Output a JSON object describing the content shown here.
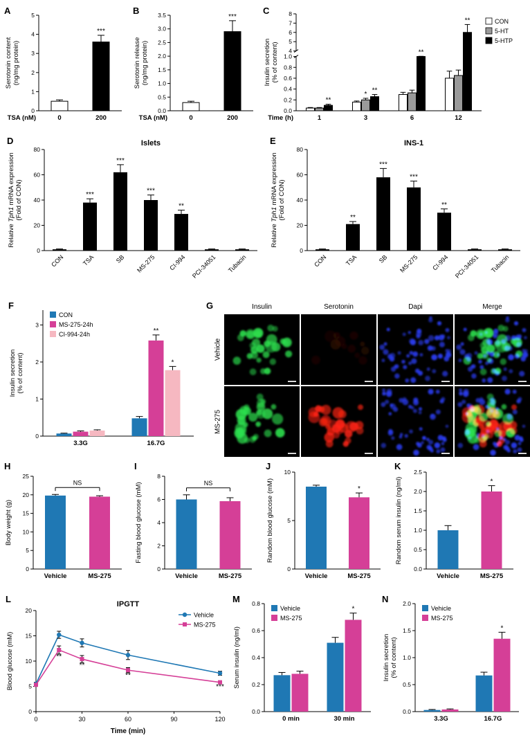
{
  "chart_data": [
    {
      "panel": "A",
      "type": "bar",
      "ylabel": [
        "Serotonin content",
        "(ng/mg protein)"
      ],
      "ylim": [
        0,
        5
      ],
      "yticks": [
        0,
        1,
        2,
        3,
        4,
        5
      ],
      "ydec": 0,
      "xprefix": "TSA (nM)",
      "categories": [
        "0",
        "200"
      ],
      "series": [
        {
          "colors": [
            "#ffffff",
            "#000000"
          ],
          "stroke": "#000000",
          "values": [
            0.5,
            3.6
          ],
          "errors": [
            0.07,
            0.35
          ],
          "sig": [
            null,
            "***"
          ]
        }
      ]
    },
    {
      "panel": "B",
      "type": "bar",
      "ylabel": [
        "Serotonin release",
        "(ng/mg protein)"
      ],
      "ylim": [
        0,
        3.5
      ],
      "yticks": [
        0,
        0.5,
        1,
        1.5,
        2,
        2.5,
        3,
        3.5
      ],
      "ydec": 1,
      "xprefix": "TSA (nM)",
      "categories": [
        "0",
        "200"
      ],
      "series": [
        {
          "colors": [
            "#ffffff",
            "#000000"
          ],
          "stroke": "#000000",
          "values": [
            0.3,
            2.9
          ],
          "errors": [
            0.05,
            0.4
          ],
          "sig": [
            null,
            "***"
          ]
        }
      ]
    },
    {
      "panel": "C",
      "type": "bar",
      "ylabel": [
        "Insulin secretion",
        "(% of content)"
      ],
      "ybreak": {
        "lower": [
          0,
          1.0
        ],
        "upper": [
          4,
          8
        ],
        "lticks": [
          0,
          0.2,
          0.4,
          0.6,
          0.8,
          1.0
        ],
        "uticks": [
          4,
          5,
          6,
          7,
          8
        ],
        "ldec": 1,
        "udec": 0
      },
      "xprefix": "Time (h)",
      "categories": [
        "1",
        "3",
        "6",
        "12"
      ],
      "series": [
        {
          "name": "CON",
          "color": "#ffffff",
          "stroke": "#000000",
          "values": [
            0.05,
            0.16,
            0.3,
            0.6
          ],
          "errors": [
            0.01,
            0.02,
            0.04,
            0.13
          ],
          "sig": [
            null,
            null,
            null,
            null
          ]
        },
        {
          "name": "5-HT",
          "color": "#9a9a9a",
          "stroke": "#000000",
          "values": [
            0.05,
            0.2,
            0.33,
            0.65
          ],
          "errors": [
            0.01,
            0.03,
            0.05,
            0.1
          ],
          "sig": [
            null,
            "*",
            null,
            null
          ]
        },
        {
          "name": "5-HTP",
          "color": "#000000",
          "stroke": "#000000",
          "values": [
            0.1,
            0.26,
            1.0,
            6.0
          ],
          "errors": [
            0.02,
            0.04,
            0.12,
            0.85
          ],
          "sig": [
            "**",
            "**",
            "**",
            "**"
          ]
        }
      ],
      "legend": {
        "pos": "right",
        "items": [
          {
            "label": "CON",
            "color": "#ffffff",
            "stroke": "#000000"
          },
          {
            "label": "5-HT",
            "color": "#9a9a9a",
            "stroke": "#000000"
          },
          {
            "label": "5-HTP",
            "color": "#000000",
            "stroke": "#000000"
          }
        ]
      }
    },
    {
      "panel": "D",
      "type": "bar",
      "title": "Islets",
      "ylabel": [
        "Relative *Tph1* mRNA expression",
        "(Fold of CON)"
      ],
      "ylim": [
        0,
        80
      ],
      "yticks": [
        0,
        20,
        40,
        60,
        80
      ],
      "ydec": 0,
      "xrotate": 45,
      "categories": [
        "CON",
        "TSA",
        "SB",
        "MS-275",
        "CI-994",
        "PCI-34051",
        "Tubacin"
      ],
      "series": [
        {
          "color": "#000000",
          "values": [
            1,
            38,
            62,
            40,
            29,
            1,
            1
          ],
          "errors": [
            0.3,
            3,
            6,
            4,
            3,
            0.3,
            0.3
          ],
          "sig": [
            null,
            "***",
            "***",
            "***",
            "**",
            null,
            null
          ]
        }
      ]
    },
    {
      "panel": "E",
      "type": "bar",
      "title": "INS-1",
      "ylabel": [
        "Relative *Tph1* mRNA expression",
        "(Fold of CON)"
      ],
      "ylim": [
        0,
        80
      ],
      "yticks": [
        0,
        20,
        40,
        60,
        80
      ],
      "ydec": 0,
      "xrotate": 45,
      "categories": [
        "CON",
        "TSA",
        "SB",
        "MS-275",
        "CI-994",
        "PCI-34051",
        "Tubacin"
      ],
      "series": [
        {
          "color": "#000000",
          "values": [
            1,
            21,
            58,
            50,
            30,
            1,
            1
          ],
          "errors": [
            0.3,
            2,
            7,
            5,
            3,
            0.3,
            0.3
          ],
          "sig": [
            null,
            "**",
            "***",
            "***",
            "**",
            null,
            null
          ]
        }
      ]
    },
    {
      "panel": "F",
      "type": "bar",
      "ylabel": [
        "Insulin secretion",
        "(% of content)"
      ],
      "ylim": [
        0,
        3.4
      ],
      "yticks": [
        0,
        1,
        2,
        3
      ],
      "ydec": 0,
      "categories": [
        "3.3G",
        "16.7G"
      ],
      "series": [
        {
          "name": "CON",
          "color": "#1f78b4",
          "values": [
            0.07,
            0.48
          ],
          "errors": [
            0.01,
            0.05
          ],
          "sig": [
            null,
            null
          ]
        },
        {
          "name": "MS-275-24h",
          "color": "#d53f97",
          "values": [
            0.12,
            2.58
          ],
          "errors": [
            0.02,
            0.15
          ],
          "sig": [
            null,
            "**"
          ]
        },
        {
          "name": "CI-994-24h",
          "color": "#f6b8c1",
          "values": [
            0.15,
            1.78
          ],
          "errors": [
            0.02,
            0.1
          ],
          "sig": [
            null,
            "*"
          ]
        }
      ],
      "legend": {
        "pos": "tl",
        "items": [
          {
            "label": "CON",
            "color": "#1f78b4"
          },
          {
            "label": "MS-275-24h",
            "color": "#d53f97"
          },
          {
            "label": "CI-994-24h",
            "color": "#f6b8c1"
          }
        ]
      }
    },
    {
      "panel": "H",
      "type": "bar",
      "ylabel": [
        "Body weight (g)"
      ],
      "ylim": [
        0,
        25
      ],
      "yticks": [
        0,
        5,
        10,
        15,
        20,
        25
      ],
      "ydec": 0,
      "categories": [
        "Vehicle",
        "MS-275"
      ],
      "bracket": {
        "label": "NS"
      },
      "series": [
        {
          "colors": [
            "#1f78b4",
            "#d53f97"
          ],
          "values": [
            19.8,
            19.5
          ],
          "errors": [
            0.3,
            0.25
          ]
        }
      ]
    },
    {
      "panel": "I",
      "type": "bar",
      "ylabel": [
        "Fasting blood glucose (mM)"
      ],
      "ylim": [
        0,
        8
      ],
      "yticks": [
        0,
        2,
        4,
        6,
        8
      ],
      "ydec": 0,
      "categories": [
        "Vehicle",
        "MS-275"
      ],
      "bracket": {
        "label": "NS"
      },
      "series": [
        {
          "colors": [
            "#1f78b4",
            "#d53f97"
          ],
          "values": [
            6.0,
            5.85
          ],
          "errors": [
            0.4,
            0.3
          ]
        }
      ]
    },
    {
      "panel": "J",
      "type": "bar",
      "ylabel": [
        "Random blood glucose (mM)"
      ],
      "ylim": [
        0,
        10
      ],
      "yticks": [
        0,
        5,
        10
      ],
      "ydec": 0,
      "categories": [
        "Vehicle",
        "MS-275"
      ],
      "series": [
        {
          "colors": [
            "#1f78b4",
            "#d53f97"
          ],
          "values": [
            8.5,
            7.4
          ],
          "errors": [
            0.15,
            0.45
          ],
          "sig": [
            null,
            "*"
          ]
        }
      ]
    },
    {
      "panel": "K",
      "type": "bar",
      "ylabel": [
        "Random serum insulin (ng/ml)"
      ],
      "ylim": [
        0,
        2.5
      ],
      "yticks": [
        0,
        0.5,
        1,
        1.5,
        2,
        2.5
      ],
      "ydec": 1,
      "categories": [
        "Vehicle",
        "MS-275"
      ],
      "series": [
        {
          "colors": [
            "#1f78b4",
            "#d53f97"
          ],
          "values": [
            1.0,
            2.0
          ],
          "errors": [
            0.12,
            0.15
          ],
          "sig": [
            null,
            "*"
          ]
        }
      ]
    },
    {
      "panel": "L",
      "type": "line",
      "title": "IPGTT",
      "ylabel": [
        "Blood glucose (mM)"
      ],
      "xlabel": "Time (min)",
      "ylim": [
        0,
        20
      ],
      "yticks": [
        0,
        5,
        10,
        15,
        20
      ],
      "ydec": 0,
      "xlim": [
        0,
        120
      ],
      "xticks": [
        0,
        30,
        60,
        90,
        120
      ],
      "series": [
        {
          "name": "Vehicle",
          "color": "#1f78b4",
          "marker": "circle",
          "x": [
            0,
            15,
            30,
            60,
            120
          ],
          "y": [
            5.5,
            15.2,
            13.6,
            11.2,
            7.6
          ],
          "errors": [
            0.3,
            0.7,
            0.8,
            0.9,
            0.4
          ]
        },
        {
          "name": "MS-275",
          "color": "#d53f97",
          "marker": "square",
          "x": [
            0,
            15,
            30,
            60,
            120
          ],
          "y": [
            5.3,
            12.2,
            10.4,
            8.2,
            5.8
          ],
          "errors": [
            0.3,
            0.8,
            0.7,
            0.5,
            0.3
          ]
        }
      ],
      "sig": [
        {
          "x": 15,
          "y": 10.5,
          "label": "**"
        },
        {
          "x": 30,
          "y": 8.8,
          "label": "**"
        },
        {
          "x": 60,
          "y": 6.8,
          "label": "**"
        },
        {
          "x": 120,
          "y": 4.5,
          "label": "***"
        }
      ],
      "legend": {
        "pos": "tr",
        "items": [
          {
            "label": "Vehicle",
            "color": "#1f78b4",
            "marker": "circle"
          },
          {
            "label": "MS-275",
            "color": "#d53f97",
            "marker": "square"
          }
        ]
      }
    },
    {
      "panel": "M",
      "type": "bar",
      "ylabel": [
        "Serum insulin (ng/ml)"
      ],
      "ylim": [
        0,
        0.8
      ],
      "yticks": [
        0,
        0.2,
        0.4,
        0.6,
        0.8
      ],
      "ydec": 1,
      "categories": [
        "0 min",
        "30 min"
      ],
      "series": [
        {
          "name": "Vehicle",
          "color": "#1f78b4",
          "values": [
            0.27,
            0.51
          ],
          "errors": [
            0.02,
            0.04
          ],
          "sig": [
            null,
            null
          ]
        },
        {
          "name": "MS-275",
          "color": "#d53f97",
          "values": [
            0.28,
            0.68
          ],
          "errors": [
            0.02,
            0.05
          ],
          "sig": [
            null,
            "*"
          ]
        }
      ],
      "legend": {
        "pos": "tl",
        "items": [
          {
            "label": "Vehicle",
            "color": "#1f78b4"
          },
          {
            "label": "MS-275",
            "color": "#d53f97"
          }
        ]
      }
    },
    {
      "panel": "N",
      "type": "bar",
      "ylabel": [
        "Insulin secretion",
        "(% of content)"
      ],
      "ylim": [
        0,
        2
      ],
      "yticks": [
        0,
        0.5,
        1,
        1.5,
        2
      ],
      "ydec": 1,
      "categories": [
        "3.3G",
        "16.7G"
      ],
      "series": [
        {
          "name": "Vehicle",
          "color": "#1f78b4",
          "values": [
            0.03,
            0.67
          ],
          "errors": [
            0.01,
            0.06
          ],
          "sig": [
            null,
            null
          ]
        },
        {
          "name": "MS-275",
          "color": "#d53f97",
          "values": [
            0.04,
            1.35
          ],
          "errors": [
            0.01,
            0.12
          ],
          "sig": [
            null,
            "*"
          ]
        }
      ],
      "legend": {
        "pos": "tl",
        "items": [
          {
            "label": "Vehicle",
            "color": "#1f78b4"
          },
          {
            "label": "MS-275",
            "color": "#d53f97"
          }
        ]
      }
    }
  ],
  "microscopy": {
    "panel": "G",
    "columns": [
      "Insulin",
      "Serotonin",
      "Dapi",
      "Merge"
    ],
    "rows": [
      "Vehicle",
      "MS-275"
    ],
    "cells": [
      [
        "green",
        "redfaint",
        "blue",
        "green+blue"
      ],
      [
        "green",
        "red",
        "blue",
        "green+red+blue"
      ]
    ],
    "channel_colors": {
      "green": "#2ddf4e",
      "red": "#ff2414",
      "redfaint": "#3a0e08",
      "blue": "#2a3cf0"
    }
  },
  "colors": {
    "blue": "#1f78b4",
    "magenta": "#d53f97",
    "pink": "#f6b8c1",
    "gray": "#9a9a9a",
    "black": "#000000",
    "white": "#ffffff"
  }
}
